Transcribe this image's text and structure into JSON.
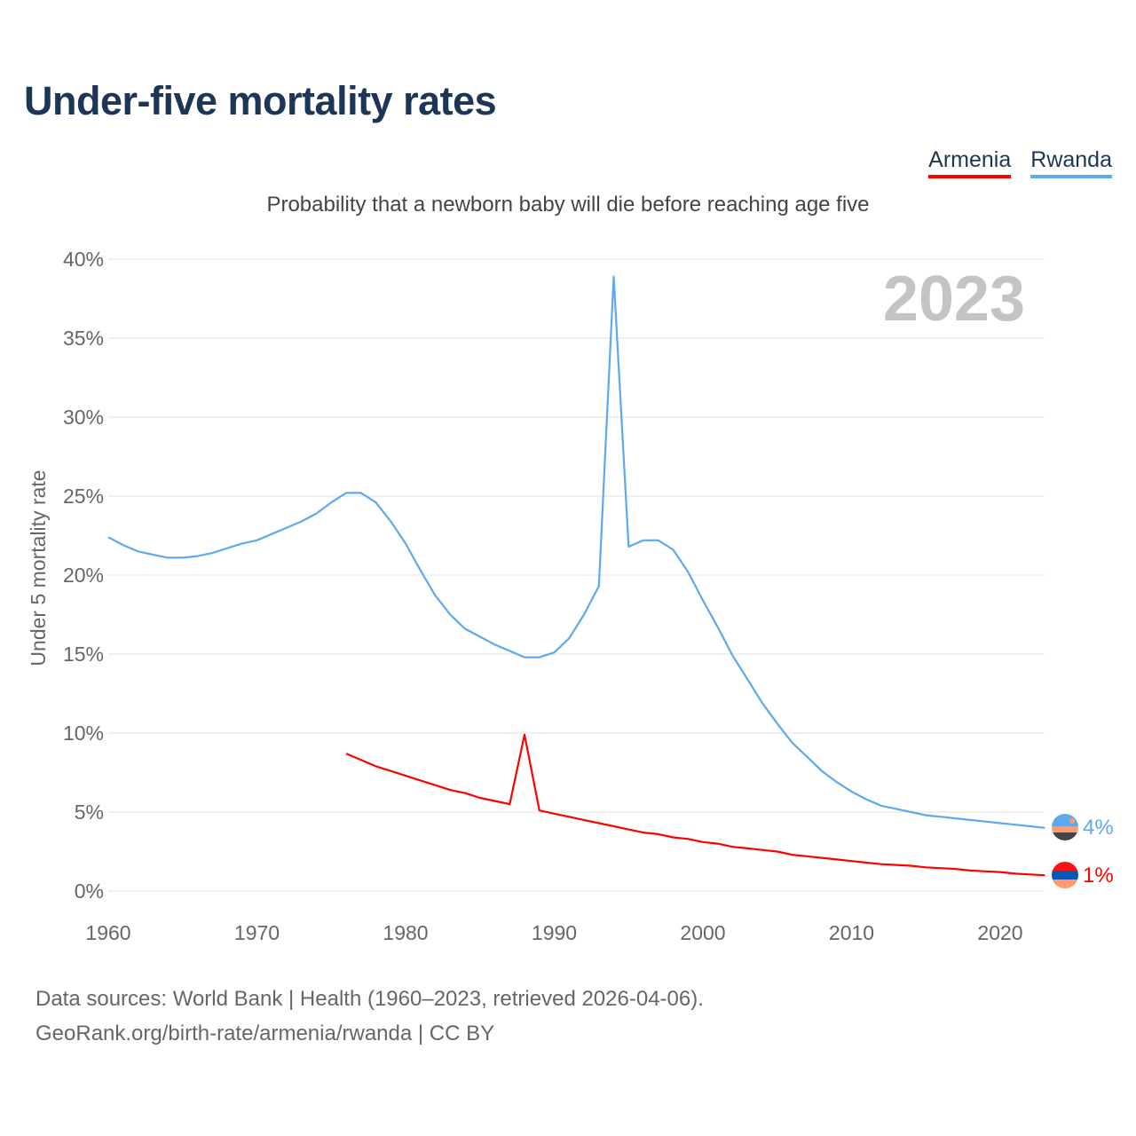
{
  "chart_data": {
    "type": "line",
    "title": "Under-five mortality rates",
    "subtitle": "Probability that a newborn baby will die before reaching age five",
    "xlabel": "",
    "ylabel": "Under 5 mortality rate",
    "ylim": [
      0,
      40
    ],
    "xlim": [
      1960,
      2023
    ],
    "yticks": [
      "0%",
      "5%",
      "10%",
      "15%",
      "20%",
      "25%",
      "30%",
      "35%",
      "40%"
    ],
    "xticks": [
      "1960",
      "1970",
      "1980",
      "1990",
      "2000",
      "2010",
      "2020"
    ],
    "grid": true,
    "year_watermark": "2023",
    "legend_placement": "top-right",
    "series": [
      {
        "name": "Armenia",
        "color": "#ff0000",
        "end_label": "1%",
        "x": [
          1976,
          1977,
          1978,
          1979,
          1980,
          1981,
          1982,
          1983,
          1984,
          1985,
          1986,
          1987,
          1988,
          1989,
          1990,
          1991,
          1992,
          1993,
          1994,
          1995,
          1996,
          1997,
          1998,
          1999,
          2000,
          2001,
          2002,
          2003,
          2004,
          2005,
          2006,
          2007,
          2008,
          2009,
          2010,
          2011,
          2012,
          2013,
          2014,
          2015,
          2016,
          2017,
          2018,
          2019,
          2020,
          2021,
          2022,
          2023
        ],
        "values": [
          8.7,
          8.3,
          7.9,
          7.6,
          7.3,
          7.0,
          6.7,
          6.4,
          6.2,
          5.9,
          5.7,
          5.5,
          9.9,
          5.1,
          4.9,
          4.7,
          4.5,
          4.3,
          4.1,
          3.9,
          3.7,
          3.6,
          3.4,
          3.3,
          3.1,
          3.0,
          2.8,
          2.7,
          2.6,
          2.5,
          2.3,
          2.2,
          2.1,
          2.0,
          1.9,
          1.8,
          1.7,
          1.65,
          1.6,
          1.5,
          1.45,
          1.4,
          1.3,
          1.25,
          1.2,
          1.1,
          1.05,
          1.0
        ]
      },
      {
        "name": "Rwanda",
        "color": "#5ea8ee",
        "end_label": "4%",
        "x": [
          1960,
          1961,
          1962,
          1963,
          1964,
          1965,
          1966,
          1967,
          1968,
          1969,
          1970,
          1971,
          1972,
          1973,
          1974,
          1975,
          1976,
          1977,
          1978,
          1979,
          1980,
          1981,
          1982,
          1983,
          1984,
          1985,
          1986,
          1987,
          1988,
          1989,
          1990,
          1991,
          1992,
          1993,
          1994,
          1995,
          1996,
          1997,
          1998,
          1999,
          2000,
          2001,
          2002,
          2003,
          2004,
          2005,
          2006,
          2007,
          2008,
          2009,
          2010,
          2011,
          2012,
          2013,
          2014,
          2015,
          2016,
          2017,
          2018,
          2019,
          2020,
          2021,
          2022,
          2023
        ],
        "values": [
          22.4,
          21.9,
          21.5,
          21.3,
          21.1,
          21.1,
          21.2,
          21.4,
          21.7,
          22.0,
          22.2,
          22.6,
          23.0,
          23.4,
          23.9,
          24.6,
          25.2,
          25.2,
          24.6,
          23.4,
          22.0,
          20.3,
          18.7,
          17.5,
          16.6,
          16.1,
          15.6,
          15.2,
          14.8,
          14.8,
          15.1,
          16.0,
          17.5,
          19.3,
          38.9,
          21.8,
          22.2,
          22.2,
          21.6,
          20.2,
          18.4,
          16.7,
          14.9,
          13.4,
          11.9,
          10.6,
          9.4,
          8.5,
          7.6,
          6.9,
          6.3,
          5.8,
          5.4,
          5.2,
          5.0,
          4.8,
          4.7,
          4.6,
          4.5,
          4.4,
          4.3,
          4.2,
          4.1,
          4.0
        ]
      }
    ]
  },
  "source": {
    "line1": "Data sources: World Bank | Health (1960–2023, retrieved 2026-04-06).",
    "line2": "GeoRank.org/birth-rate/armenia/rwanda | CC BY"
  }
}
